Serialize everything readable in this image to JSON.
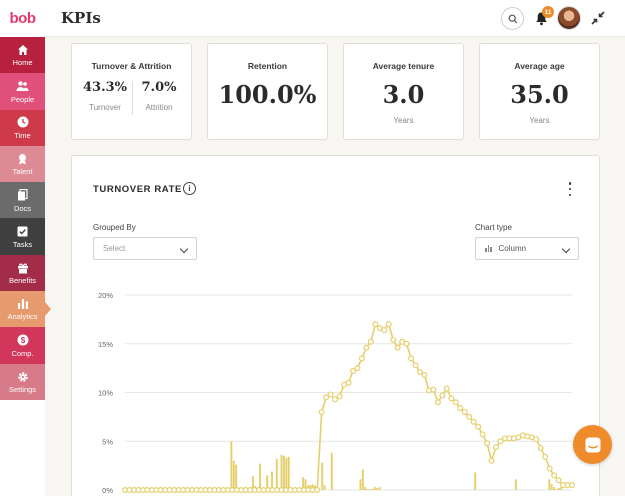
{
  "app": {
    "logo_text": "bob"
  },
  "header": {
    "title": "KPIs",
    "notification_count": "11"
  },
  "sidebar": {
    "items": [
      {
        "label": "Home",
        "icon": "home-icon",
        "color": "#b7213e"
      },
      {
        "label": "People",
        "icon": "people-icon",
        "color": "#e0507b"
      },
      {
        "label": "Time",
        "icon": "clock-icon",
        "color": "#cf3a4a"
      },
      {
        "label": "Talent",
        "icon": "award-icon",
        "color": "#de8a94"
      },
      {
        "label": "Docs",
        "icon": "docs-icon",
        "color": "#6b6b6b"
      },
      {
        "label": "Tasks",
        "icon": "tasks-icon",
        "color": "#3f3f3f"
      },
      {
        "label": "Benefits",
        "icon": "gift-icon",
        "color": "#a32c48"
      },
      {
        "label": "Analytics",
        "icon": "analytics-icon",
        "color": "#e69a6e",
        "active": true
      },
      {
        "label": "Comp.",
        "icon": "dollar-icon",
        "color": "#d2365a"
      },
      {
        "label": "Settings",
        "icon": "gear-icon",
        "color": "#d77b8a"
      }
    ]
  },
  "kpis": {
    "turnover_attrition": {
      "title": "Turnover & Attrition",
      "turnover_value": "43.3%",
      "turnover_label": "Turnover",
      "attrition_value": "7.0%",
      "attrition_label": "Attrition"
    },
    "retention": {
      "title": "Retention",
      "value": "100.0%"
    },
    "average_tenure": {
      "title": "Average tenure",
      "value": "3.0",
      "unit": "Years"
    },
    "average_age": {
      "title": "Average age",
      "value": "35.0",
      "unit": "Years"
    }
  },
  "turnover_chart": {
    "title": "TURNOVER RATE",
    "grouped_by": {
      "label": "Grouped By",
      "placeholder": "Select"
    },
    "chart_type": {
      "label": "Chart type",
      "value": "Column"
    }
  },
  "colors": {
    "accent": "#f08b2b",
    "series": "#e5cf6b",
    "brand": "#e8386b"
  },
  "chart_data": {
    "type": "bar",
    "title": "TURNOVER RATE",
    "ylim": [
      0,
      20
    ],
    "yticks": [
      "0%",
      "5%",
      "10%",
      "15%",
      "20%"
    ],
    "grid": true,
    "series": [
      {
        "type": "line",
        "values": [
          0,
          0,
          0,
          0,
          0,
          0,
          0,
          0,
          0,
          0,
          0,
          0,
          0,
          0,
          0,
          0,
          0,
          0,
          0,
          0,
          0,
          0,
          0,
          0,
          0,
          0,
          0,
          0,
          0,
          0,
          0,
          0,
          0,
          0,
          0,
          0,
          0,
          0,
          0,
          0,
          0,
          0,
          0,
          0,
          8,
          9.5,
          9.8,
          9.3,
          9.6,
          10.8,
          11,
          12.2,
          12.5,
          13.5,
          14.6,
          15.2,
          17,
          16.6,
          16.4,
          17,
          15.4,
          14.6,
          15.2,
          15,
          13.5,
          12.8,
          12.1,
          11.8,
          10.2,
          10.3,
          9,
          9.7,
          10.4,
          9.4,
          9,
          8.4,
          8,
          7.5,
          7,
          6.5,
          5.7,
          4.8,
          3,
          4.4,
          5,
          5.3,
          5.3,
          5.3,
          5.4,
          5.6,
          5.5,
          5.4,
          5.2,
          4.3,
          3.4,
          2.2,
          1.5,
          1,
          0.5,
          0.5,
          0.5
        ]
      },
      {
        "type": "bar",
        "values": [
          0,
          0,
          0,
          0,
          0,
          0,
          0,
          0,
          0,
          0,
          0,
          0,
          0,
          0,
          0,
          0,
          0,
          0,
          0,
          0,
          0,
          0,
          0,
          0,
          0,
          0,
          0,
          0,
          0,
          0,
          0,
          0,
          0,
          0,
          0,
          0,
          0,
          0,
          0,
          0,
          0,
          0,
          0,
          0,
          5,
          3,
          2.6,
          0,
          0,
          0,
          0,
          0,
          0,
          1.4,
          0.4,
          0,
          2.7,
          0,
          0,
          1.5,
          0,
          1.9,
          0,
          3.2,
          0,
          3.6,
          3.5,
          3.3,
          3.4,
          0,
          0,
          0,
          0,
          0,
          1.3,
          1.1,
          0.5,
          0.5,
          0.6,
          0.5,
          0,
          0,
          2.8,
          0.5,
          0,
          0,
          3.8,
          0,
          0,
          0,
          0,
          0,
          0,
          0,
          0,
          0,
          0,
          0,
          1.1,
          2.1,
          0.3,
          0.1,
          0.1,
          0.1,
          0.3,
          0.2,
          0.3,
          0,
          0,
          0,
          0,
          0,
          0,
          0,
          0,
          0,
          0,
          0,
          0,
          0,
          0,
          0,
          0,
          0,
          0,
          0,
          0,
          0,
          0,
          0,
          0,
          0,
          0,
          0,
          0,
          0,
          0,
          0,
          0,
          0,
          0,
          0,
          0,
          0,
          0,
          0,
          1.8,
          0,
          0,
          0,
          0,
          0,
          0,
          0,
          0,
          0,
          0,
          0,
          0,
          0,
          0,
          0,
          0,
          1.1,
          0,
          0,
          0,
          0,
          0,
          0,
          0,
          0,
          0,
          0,
          0,
          0,
          0,
          1.1,
          0.6,
          0.3,
          0.1,
          0.2,
          0.3,
          0,
          0,
          0,
          0
        ]
      }
    ]
  }
}
